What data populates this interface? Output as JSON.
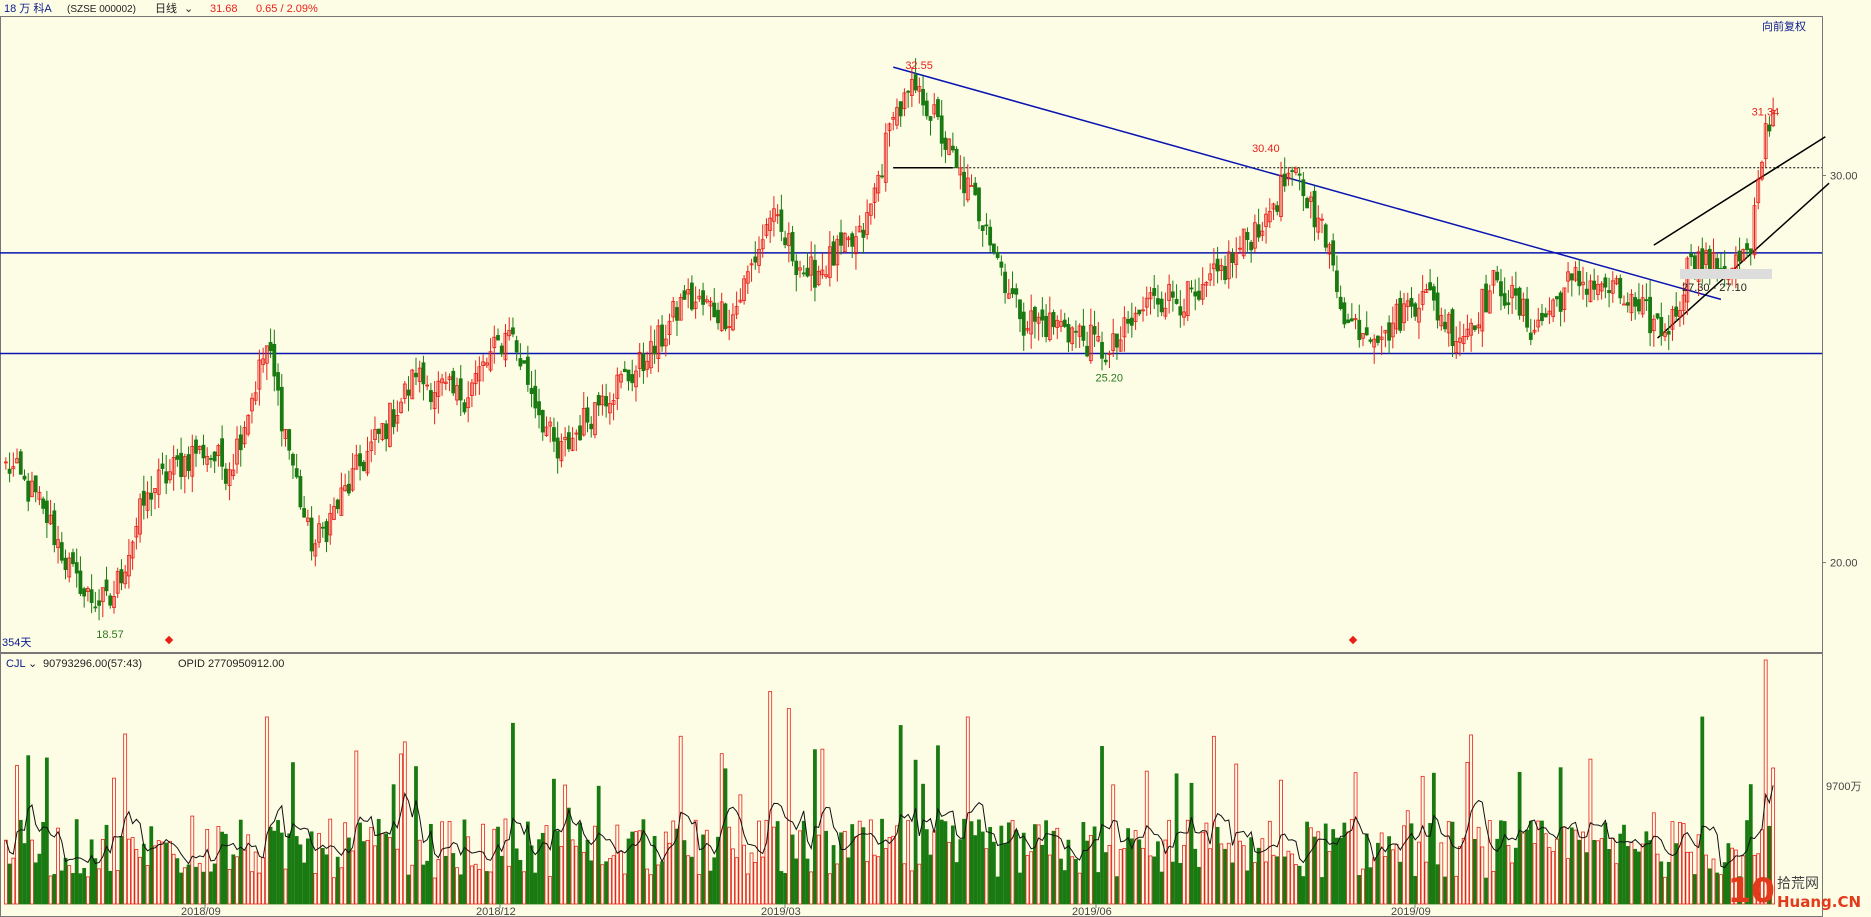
{
  "header": {
    "stock_name": "18 万 科A",
    "code": "(SZSE 000002)",
    "period": "日线",
    "price": "31.68",
    "change": "0.65 / 2.09%",
    "adjust": "向前复权",
    "days": "354天"
  },
  "volume_panel": {
    "indicator": "CJL",
    "value_text": "90793296.00(57:43)",
    "opid_text": "OPID 2770950912.00",
    "axis_label": "9700万"
  },
  "annotations": {
    "high1": "32.55",
    "high2": "30.40",
    "high3": "31.34",
    "low1": "18.57",
    "low2": "25.20",
    "range": "27.30 - 27.10"
  },
  "watermark": {
    "num": "10",
    "cn": "拾荒网",
    "en": "Huang.CN"
  },
  "colors": {
    "up": "#e8211a",
    "down": "#1a7a12",
    "line": "#0a14b0",
    "bg": "#fdfde6"
  },
  "chart_data": {
    "type": "candlestick",
    "price_axis": {
      "ticks": [
        20.0,
        30.0
      ],
      "tick_labels": [
        "20.00",
        "30.00"
      ],
      "ylim": [
        18.0,
        33.5
      ]
    },
    "x_tick_labels": [
      "2018/09",
      "2018/12",
      "2019/03",
      "2019/06",
      "2019/09"
    ],
    "anchors": [
      {
        "i": 0,
        "close": 22.6
      },
      {
        "i": 10,
        "close": 21.4
      },
      {
        "i": 20,
        "close": 19.2
      },
      {
        "i": 28,
        "close": 18.9
      },
      {
        "i": 38,
        "close": 21.8
      },
      {
        "i": 52,
        "close": 23.0
      },
      {
        "i": 60,
        "close": 22.4
      },
      {
        "i": 70,
        "close": 25.6
      },
      {
        "i": 82,
        "close": 20.3
      },
      {
        "i": 95,
        "close": 22.5
      },
      {
        "i": 110,
        "close": 24.8
      },
      {
        "i": 122,
        "close": 24.2
      },
      {
        "i": 135,
        "close": 26.0
      },
      {
        "i": 148,
        "close": 22.7
      },
      {
        "i": 160,
        "close": 24.3
      },
      {
        "i": 172,
        "close": 25.2
      },
      {
        "i": 182,
        "close": 26.8
      },
      {
        "i": 195,
        "close": 26.4
      },
      {
        "i": 205,
        "close": 28.9
      },
      {
        "i": 215,
        "close": 27.4
      },
      {
        "i": 230,
        "close": 28.4
      },
      {
        "i": 238,
        "close": 31.5
      },
      {
        "i": 245,
        "close": 32.3
      },
      {
        "i": 255,
        "close": 30.2
      },
      {
        "i": 263,
        "close": 28.7
      },
      {
        "i": 272,
        "close": 26.3
      },
      {
        "i": 284,
        "close": 26.1
      },
      {
        "i": 296,
        "close": 25.4
      },
      {
        "i": 308,
        "close": 26.9
      },
      {
        "i": 320,
        "close": 26.8
      },
      {
        "i": 330,
        "close": 28.0
      },
      {
        "i": 338,
        "close": 29.0
      },
      {
        "i": 345,
        "close": 30.1
      },
      {
        "i": 352,
        "close": 28.9
      },
      {
        "i": 360,
        "close": 26.2
      },
      {
        "i": 370,
        "close": 26.0
      },
      {
        "i": 380,
        "close": 27.0
      },
      {
        "i": 390,
        "close": 25.8
      },
      {
        "i": 400,
        "close": 27.3
      },
      {
        "i": 410,
        "close": 26.0
      },
      {
        "i": 420,
        "close": 27.3
      },
      {
        "i": 428,
        "close": 27.2
      },
      {
        "i": 438,
        "close": 26.5
      },
      {
        "i": 446,
        "close": 25.9
      },
      {
        "i": 452,
        "close": 27.9
      },
      {
        "i": 460,
        "close": 27.5
      },
      {
        "i": 468,
        "close": 28.0
      },
      {
        "i": 472,
        "close": 31.34
      },
      {
        "i": 474,
        "close": 31.68
      }
    ],
    "n_bars": 475,
    "highlights": [
      {
        "label": "32.55",
        "i": 245,
        "value": 32.55
      },
      {
        "label": "30.40",
        "i": 338,
        "value": 30.4
      },
      {
        "label": "31.34",
        "i": 472,
        "value": 31.34
      },
      {
        "label": "18.57",
        "i": 28,
        "value": 18.57
      },
      {
        "label": "25.20",
        "i": 296,
        "value": 25.2
      }
    ],
    "horizontal_lines": [
      28.0,
      25.4
    ],
    "dotted_line": 30.2,
    "trend_line": {
      "from": {
        "i": 238,
        "v": 32.8
      },
      "to": {
        "i": 460,
        "v": 26.8
      }
    },
    "channel_lines": [
      {
        "from": {
          "i": 442,
          "v": 28.2
        },
        "to": {
          "i": 488,
          "v": 31.0
        }
      },
      {
        "from": {
          "i": 443,
          "v": 25.8
        },
        "to": {
          "i": 489,
          "v": 29.8
        }
      }
    ],
    "short_line": {
      "from": {
        "i": 238,
        "v": 30.2
      },
      "to": {
        "i": 254,
        "v": 30.2
      }
    },
    "volume_spikes": [
      {
        "i": 205,
        "v": 1.25
      },
      {
        "i": 210,
        "v": 1.15
      },
      {
        "i": 240,
        "v": 1.05
      },
      {
        "i": 258,
        "v": 1.1
      },
      {
        "i": 455,
        "v": 1.1
      },
      {
        "i": 472,
        "v": 1.5
      },
      {
        "i": 474,
        "v": 0.8
      },
      {
        "i": 32,
        "v": 1.0
      },
      {
        "i": 70,
        "v": 1.1
      },
      {
        "i": 94,
        "v": 0.9
      }
    ]
  }
}
